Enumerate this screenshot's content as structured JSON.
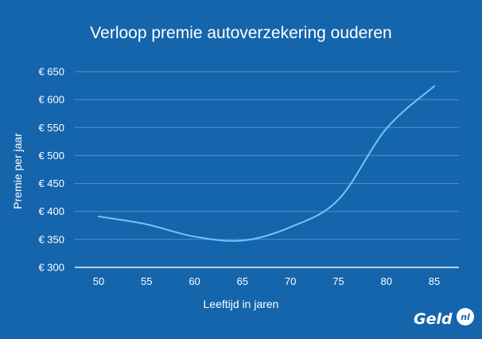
{
  "brand": {
    "name": "Geld",
    "suffix": "nl"
  },
  "colors": {
    "background": "#1565ad",
    "line": "#6ec6ff",
    "grid": "#5b8fc8"
  },
  "chart_data": {
    "type": "line",
    "title": "Verloop premie autoverzekering ouderen",
    "xlabel": "Leeftijd in jaren",
    "ylabel": "Premie per jaar",
    "x": [
      50,
      55,
      60,
      65,
      70,
      75,
      80,
      85
    ],
    "series": [
      {
        "values": [
          391,
          377,
          355,
          348,
          372,
          421,
          548,
          624
        ]
      }
    ],
    "ylim": [
      300,
      650
    ],
    "yticks": [
      300,
      350,
      400,
      450,
      500,
      550,
      600,
      650
    ],
    "ytick_labels": [
      "€ 300",
      "€ 350",
      "€ 400",
      "€ 450",
      "€ 500",
      "€ 550",
      "€ 600",
      "€ 650"
    ],
    "xtick_labels": [
      "50",
      "55",
      "60",
      "65",
      "70",
      "75",
      "80",
      "85"
    ],
    "grid": true,
    "legend": "none"
  }
}
